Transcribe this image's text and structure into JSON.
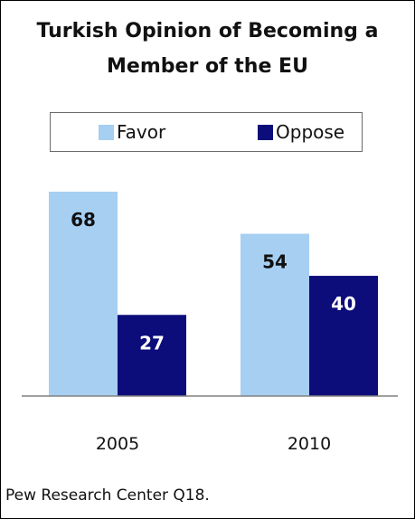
{
  "chart_data": {
    "type": "bar",
    "title_lines": [
      "Turkish Opinion of Becoming a",
      "Member of the EU"
    ],
    "categories": [
      "2005",
      "2010"
    ],
    "series": [
      {
        "name": "Favor",
        "values": [
          68,
          54
        ],
        "color": "#a6cff2"
      },
      {
        "name": "Oppose",
        "values": [
          27,
          40
        ],
        "color": "#0c0c7a"
      }
    ],
    "ylim": [
      0,
      68
    ],
    "grid": false,
    "legend_position": "top",
    "data_labels": true,
    "xlabel": "",
    "ylabel": ""
  },
  "source": "Pew Research Center Q18."
}
